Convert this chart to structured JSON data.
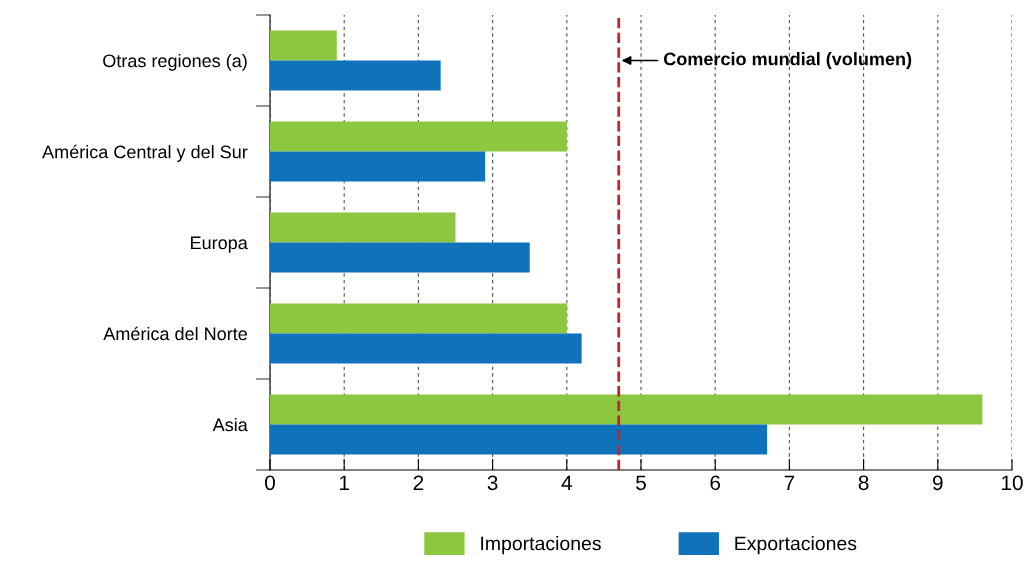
{
  "chart_data": {
    "type": "bar",
    "orientation": "horizontal",
    "categories": [
      "Otras regiones (a)",
      "América Central y del Sur",
      "Europa",
      "América del Norte",
      "Asia"
    ],
    "series": [
      {
        "name": "Importaciones",
        "color": "#8dc63f",
        "values": [
          0.9,
          4.0,
          2.5,
          4.0,
          9.6
        ]
      },
      {
        "name": "Exportaciones",
        "color": "#0f72ba",
        "values": [
          2.3,
          2.9,
          3.5,
          4.2,
          6.7
        ]
      }
    ],
    "xlim": [
      0,
      10
    ],
    "xticks": [
      0,
      1,
      2,
      3,
      4,
      5,
      6,
      7,
      8,
      9,
      10
    ],
    "grid": "x",
    "legend": "bottom",
    "ref_lines": [
      {
        "axis": "x",
        "value": 4.7,
        "label": "Comercio mundial (volumen)",
        "color": "#c8202f",
        "line_style": "dashed"
      }
    ]
  }
}
